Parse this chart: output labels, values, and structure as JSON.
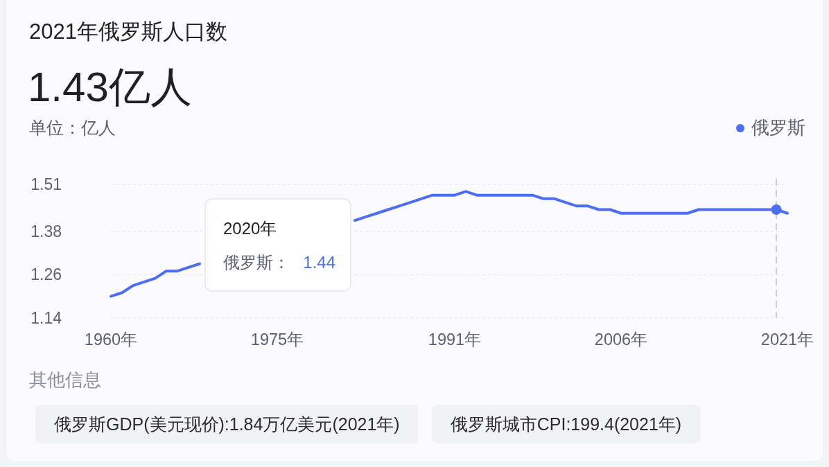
{
  "chart_data": {
    "type": "line",
    "title": "2021年俄罗斯人口数",
    "subtitle": "1.43亿人",
    "ylabel": "单位：亿人",
    "x": [
      1960,
      1961,
      1962,
      1963,
      1964,
      1965,
      1966,
      1967,
      1968,
      1969,
      1970,
      1971,
      1972,
      1973,
      1974,
      1975,
      1976,
      1977,
      1978,
      1979,
      1980,
      1981,
      1982,
      1983,
      1984,
      1985,
      1986,
      1987,
      1988,
      1989,
      1990,
      1991,
      1992,
      1993,
      1994,
      1995,
      1996,
      1997,
      1998,
      1999,
      2000,
      2001,
      2002,
      2003,
      2004,
      2005,
      2006,
      2007,
      2008,
      2009,
      2010,
      2011,
      2012,
      2013,
      2014,
      2015,
      2016,
      2017,
      2018,
      2019,
      2020,
      2021
    ],
    "series": [
      {
        "name": "俄罗斯",
        "color": "#4e6ef2",
        "values": [
          1.2,
          1.21,
          1.23,
          1.24,
          1.25,
          1.27,
          1.27,
          1.28,
          1.29,
          null,
          null,
          null,
          null,
          null,
          null,
          null,
          null,
          null,
          null,
          null,
          null,
          null,
          1.41,
          1.42,
          1.43,
          1.44,
          1.45,
          1.46,
          1.47,
          1.48,
          1.48,
          1.48,
          1.49,
          1.48,
          1.48,
          1.48,
          1.48,
          1.48,
          1.48,
          1.47,
          1.47,
          1.46,
          1.45,
          1.45,
          1.44,
          1.44,
          1.43,
          1.43,
          1.43,
          1.43,
          1.43,
          1.43,
          1.43,
          1.44,
          1.44,
          1.44,
          1.44,
          1.44,
          1.44,
          1.44,
          1.44,
          1.43
        ]
      },
      {
        "type": "scatter",
        "color": "#4e6ef2",
        "marker": "circle",
        "x": [
          2020
        ],
        "values": [
          1.44
        ]
      }
    ],
    "xlim": [
      1960,
      2021
    ],
    "xticks": [
      {
        "value": 1960,
        "label": "1960年"
      },
      {
        "value": 1975,
        "label": "1975年"
      },
      {
        "value": 1991,
        "label": "1991年"
      },
      {
        "value": 2006,
        "label": "2006年"
      },
      {
        "value": 2021,
        "label": "2021年"
      }
    ],
    "ylim": [
      1.14,
      1.51
    ],
    "yticks": [
      1.14,
      1.26,
      1.38,
      1.51
    ],
    "grid": "y",
    "legend": "top right",
    "marker": "none",
    "line_style": "solid",
    "ref_lines": [
      {
        "axis": "x",
        "value": 2020,
        "color": "#a0a4ae",
        "line_style": "dashed"
      }
    ],
    "annotations": [
      "2020年",
      "俄罗斯：",
      "1.44",
      "其他信息",
      "俄罗斯GDP(美元现价):1.84万亿美元(2021年)",
      "俄罗斯城市CPI:199.4(2021年)"
    ]
  }
}
